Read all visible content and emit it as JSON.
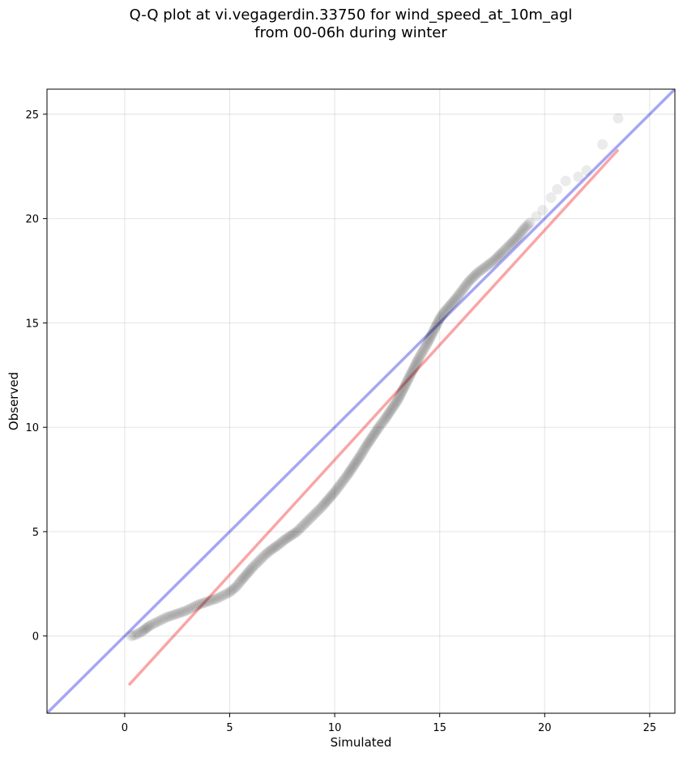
{
  "chart_data": {
    "type": "scatter",
    "title": "Q-Q plot at vi.vegagerdin.33750 for wind_speed_at_10m_agl",
    "subtitle": "from 00-06h during winter",
    "xlabel": "Simulated",
    "ylabel": "Observed",
    "xlim": [
      -3.7,
      26.2
    ],
    "ylim": [
      -3.7,
      26.2
    ],
    "xticks": [
      0,
      5,
      10,
      15,
      20,
      25
    ],
    "yticks": [
      0,
      5,
      10,
      15,
      20,
      25
    ],
    "grid": true,
    "series": [
      {
        "kind": "points",
        "color": "#000000",
        "points": [
          [
            0.3,
            0.0
          ],
          [
            0.5,
            0.05
          ],
          [
            0.6,
            0.1
          ],
          [
            0.8,
            0.2
          ],
          [
            1.0,
            0.35
          ],
          [
            1.2,
            0.5
          ],
          [
            1.5,
            0.65
          ],
          [
            1.8,
            0.8
          ],
          [
            2.0,
            0.9
          ],
          [
            2.3,
            1.0
          ],
          [
            2.6,
            1.1
          ],
          [
            2.9,
            1.2
          ],
          [
            3.2,
            1.35
          ],
          [
            3.5,
            1.5
          ],
          [
            3.8,
            1.6
          ],
          [
            4.1,
            1.7
          ],
          [
            4.4,
            1.8
          ],
          [
            4.7,
            1.95
          ],
          [
            5.0,
            2.1
          ],
          [
            5.3,
            2.35
          ],
          [
            5.5,
            2.6
          ],
          [
            5.8,
            2.95
          ],
          [
            6.1,
            3.3
          ],
          [
            6.4,
            3.6
          ],
          [
            6.7,
            3.9
          ],
          [
            7.0,
            4.15
          ],
          [
            7.3,
            4.35
          ],
          [
            7.6,
            4.6
          ],
          [
            7.9,
            4.8
          ],
          [
            8.2,
            5.0
          ],
          [
            8.5,
            5.3
          ],
          [
            8.8,
            5.6
          ],
          [
            9.1,
            5.9
          ],
          [
            9.4,
            6.2
          ],
          [
            9.7,
            6.55
          ],
          [
            10.0,
            6.9
          ],
          [
            10.3,
            7.3
          ],
          [
            10.6,
            7.7
          ],
          [
            10.9,
            8.15
          ],
          [
            11.2,
            8.6
          ],
          [
            11.5,
            9.1
          ],
          [
            11.8,
            9.55
          ],
          [
            12.1,
            10.0
          ],
          [
            12.4,
            10.4
          ],
          [
            12.7,
            10.85
          ],
          [
            13.0,
            11.3
          ],
          [
            13.2,
            11.7
          ],
          [
            13.4,
            12.1
          ],
          [
            13.6,
            12.5
          ],
          [
            13.8,
            12.9
          ],
          [
            14.0,
            13.3
          ],
          [
            14.2,
            13.65
          ],
          [
            14.4,
            14.0
          ],
          [
            14.6,
            14.4
          ],
          [
            14.8,
            14.8
          ],
          [
            15.0,
            15.2
          ],
          [
            15.2,
            15.5
          ],
          [
            15.5,
            15.85
          ],
          [
            15.8,
            16.2
          ],
          [
            16.1,
            16.6
          ],
          [
            16.4,
            17.0
          ],
          [
            16.8,
            17.4
          ],
          [
            17.2,
            17.7
          ],
          [
            17.6,
            18.0
          ],
          [
            18.0,
            18.4
          ],
          [
            18.3,
            18.7
          ],
          [
            18.7,
            19.1
          ],
          [
            19.0,
            19.5
          ],
          [
            19.3,
            19.8
          ],
          [
            19.6,
            20.1
          ],
          [
            19.9,
            20.4
          ],
          [
            20.3,
            21.0
          ],
          [
            20.6,
            21.4
          ],
          [
            21.0,
            21.8
          ],
          [
            21.6,
            22.0
          ],
          [
            22.0,
            22.3
          ],
          [
            23.5,
            24.8
          ]
        ]
      },
      {
        "kind": "line",
        "color": "#0000dd",
        "opacity": 0.35,
        "x": [
          -3.7,
          26.2
        ],
        "y": [
          -3.7,
          26.2
        ]
      },
      {
        "kind": "line",
        "color": "#ee0000",
        "opacity": 0.35,
        "x": [
          0.2,
          23.5
        ],
        "y": [
          -2.35,
          23.3
        ]
      }
    ]
  }
}
